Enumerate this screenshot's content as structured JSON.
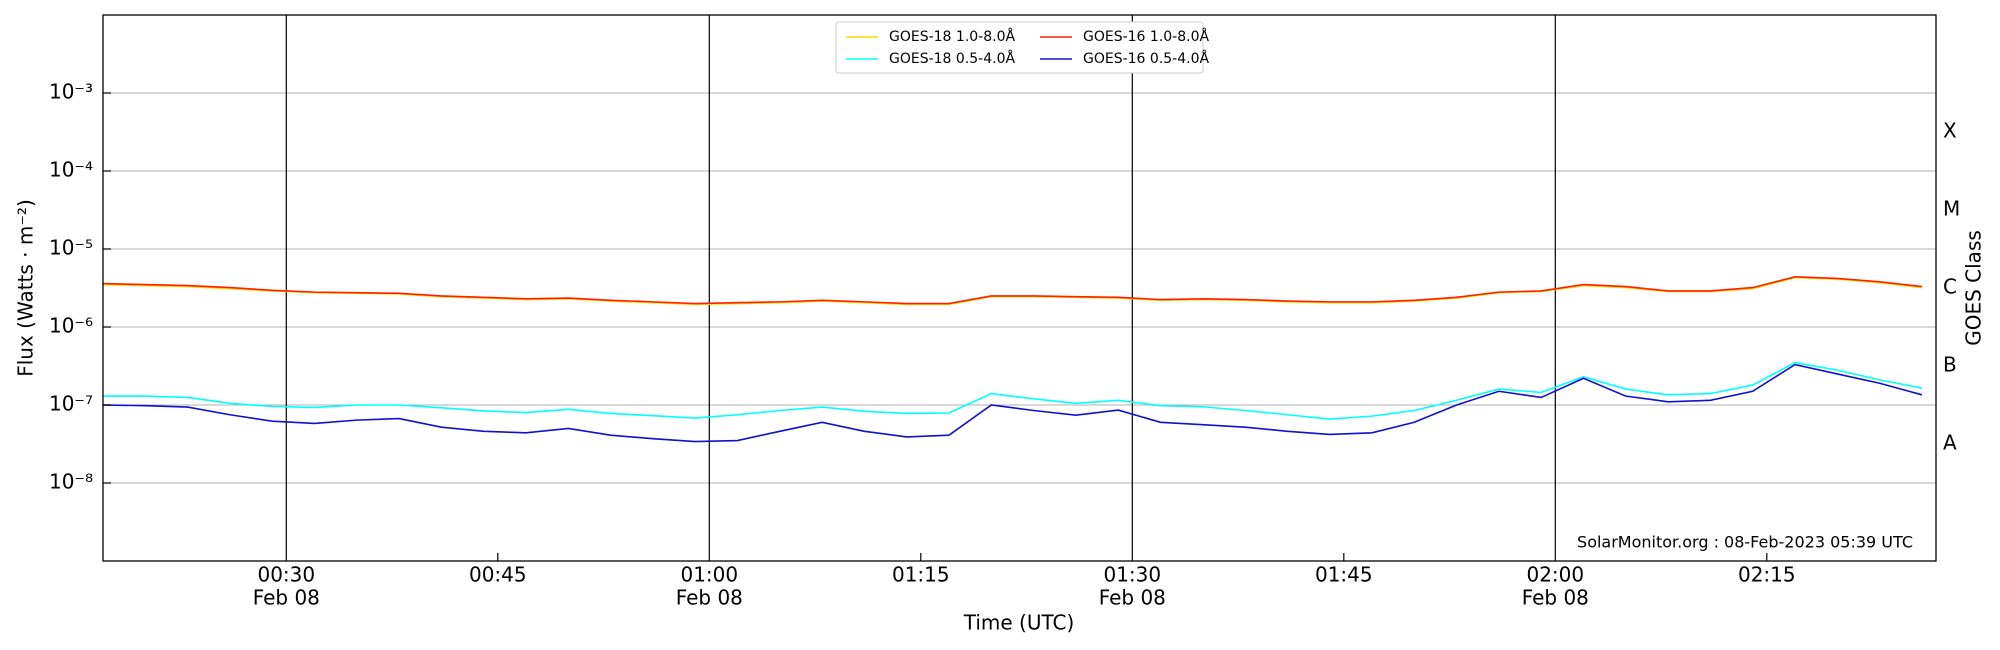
{
  "chart_data": {
    "type": "line",
    "xlabel": "Time (UTC)",
    "ylabel": "Flux (Watts · m⁻²)",
    "y2label": "GOES Class",
    "annotation": "SolarMonitor.org : 08-Feb-2023 05:39 UTC",
    "ylog": true,
    "grid": true,
    "legend": "upper center",
    "xlim": [
      "00:17",
      "02:27"
    ],
    "ylim": [
      1e-09,
      0.01
    ],
    "y2lim": [
      1e-09,
      0.01
    ],
    "xticks": [
      {
        "value": "00:30",
        "label": [
          "00:30",
          "Feb 08"
        ]
      },
      "00:45",
      {
        "value": "01:00",
        "label": [
          "01:00",
          "Feb 08"
        ]
      },
      "01:15",
      {
        "value": "01:30",
        "label": [
          "01:30",
          "Feb 08"
        ]
      },
      "01:45",
      {
        "value": "02:00",
        "label": [
          "02:00",
          "Feb 08"
        ]
      },
      "02:15"
    ],
    "yticks": [
      {
        "value": 1e-08,
        "label": "10⁻⁸"
      },
      {
        "value": 1e-07,
        "label": "10⁻⁷"
      },
      {
        "value": 1e-06,
        "label": "10⁻⁶"
      },
      {
        "value": 1e-05,
        "label": "10⁻⁵"
      },
      {
        "value": 0.0001,
        "label": "10⁻⁴"
      },
      {
        "value": 0.001,
        "label": "10⁻³"
      }
    ],
    "y2ticks": [
      {
        "value": 3.16e-08,
        "label": "A"
      },
      {
        "value": 3.16e-07,
        "label": "B"
      },
      {
        "value": 3.16e-06,
        "label": "C"
      },
      {
        "value": 3.16e-05,
        "label": "M"
      },
      {
        "value": 0.000316,
        "label": "X"
      }
    ],
    "x": [
      "00:17",
      "00:20",
      "00:23",
      "00:26",
      "00:29",
      "00:32",
      "00:35",
      "00:38",
      "00:41",
      "00:44",
      "00:47",
      "00:50",
      "00:53",
      "00:56",
      "00:59",
      "01:02",
      "01:05",
      "01:08",
      "01:11",
      "01:14",
      "01:17",
      "01:20",
      "01:23",
      "01:26",
      "01:29",
      "01:32",
      "01:35",
      "01:38",
      "01:41",
      "01:44",
      "01:47",
      "01:50",
      "01:53",
      "01:56",
      "01:59",
      "02:02",
      "02:05",
      "02:08",
      "02:11",
      "02:14",
      "02:17",
      "02:20",
      "02:23",
      "02:26"
    ],
    "series": [
      {
        "name": "GOES-18 1.0-8.0Å",
        "color": "#ffd700",
        "values": [
          3.5e-06,
          3.4e-06,
          3.3e-06,
          3.1e-06,
          2.9e-06,
          2.75e-06,
          2.7e-06,
          2.65e-06,
          2.45e-06,
          2.35e-06,
          2.25e-06,
          2.3e-06,
          2.15e-06,
          2.05e-06,
          1.95e-06,
          2e-06,
          2.05e-06,
          2.15e-06,
          2.05e-06,
          1.95e-06,
          1.95e-06,
          2.45e-06,
          2.45e-06,
          2.4e-06,
          2.35e-06,
          2.2e-06,
          2.25e-06,
          2.2e-06,
          2.1e-06,
          2.05e-06,
          2.05e-06,
          2.15e-06,
          2.35e-06,
          2.75e-06,
          2.85e-06,
          3.4e-06,
          3.2e-06,
          2.85e-06,
          2.85e-06,
          3.1e-06,
          4.3e-06,
          4.1e-06,
          3.7e-06,
          3.2e-06
        ]
      },
      {
        "name": "GOES-18 0.5-4.0Å",
        "color": "#00ffff",
        "values": [
          1.3e-07,
          1.3e-07,
          1.25e-07,
          1.05e-07,
          9.6e-08,
          9.3e-08,
          1e-07,
          1e-07,
          9.2e-08,
          8.4e-08,
          8e-08,
          8.8e-08,
          7.8e-08,
          7.3e-08,
          6.8e-08,
          7.5e-08,
          8.5e-08,
          9.4e-08,
          8.3e-08,
          7.8e-08,
          7.9e-08,
          1.4e-07,
          1.2e-07,
          1.05e-07,
          1.15e-07,
          9.8e-08,
          9.5e-08,
          8.5e-08,
          7.5e-08,
          6.6e-08,
          7.2e-08,
          8.5e-08,
          1.15e-07,
          1.6e-07,
          1.45e-07,
          2.3e-07,
          1.6e-07,
          1.35e-07,
          1.4e-07,
          1.8e-07,
          3.5e-07,
          2.8e-07,
          2.1e-07,
          1.65e-07
        ]
      },
      {
        "name": "GOES-16 1.0-8.0Å",
        "color": "#ff2000",
        "values": [
          3.6e-06,
          3.5e-06,
          3.4e-06,
          3.2e-06,
          2.95e-06,
          2.8e-06,
          2.75e-06,
          2.7e-06,
          2.5e-06,
          2.4e-06,
          2.3e-06,
          2.35e-06,
          2.2e-06,
          2.1e-06,
          2e-06,
          2.05e-06,
          2.1e-06,
          2.2e-06,
          2.1e-06,
          2e-06,
          2e-06,
          2.5e-06,
          2.5e-06,
          2.45e-06,
          2.4e-06,
          2.25e-06,
          2.3e-06,
          2.25e-06,
          2.15e-06,
          2.1e-06,
          2.1e-06,
          2.2e-06,
          2.4e-06,
          2.8e-06,
          2.9e-06,
          3.5e-06,
          3.3e-06,
          2.9e-06,
          2.9e-06,
          3.2e-06,
          4.4e-06,
          4.2e-06,
          3.8e-06,
          3.3e-06
        ]
      },
      {
        "name": "GOES-16 0.5-4.0Å",
        "color": "#1010d0",
        "values": [
          1e-07,
          9.8e-08,
          9.4e-08,
          7.5e-08,
          6.2e-08,
          5.8e-08,
          6.4e-08,
          6.7e-08,
          5.2e-08,
          4.6e-08,
          4.4e-08,
          5e-08,
          4.1e-08,
          3.7e-08,
          3.4e-08,
          3.5e-08,
          4.6e-08,
          6e-08,
          4.6e-08,
          3.9e-08,
          4.1e-08,
          1e-07,
          8.5e-08,
          7.4e-08,
          8.6e-08,
          6e-08,
          5.6e-08,
          5.2e-08,
          4.6e-08,
          4.2e-08,
          4.4e-08,
          6e-08,
          1e-07,
          1.5e-07,
          1.25e-07,
          2.2e-07,
          1.3e-07,
          1.1e-07,
          1.15e-07,
          1.5e-07,
          3.3e-07,
          2.5e-07,
          1.9e-07,
          1.35e-07
        ]
      }
    ]
  }
}
